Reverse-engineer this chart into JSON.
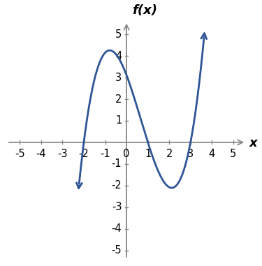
{
  "zeros": [
    -2,
    1,
    3
  ],
  "scale": 0.519,
  "xlim": [
    -5.7,
    5.7
  ],
  "ylim": [
    -5.5,
    5.7
  ],
  "x_ticks": [
    -5,
    -4,
    -3,
    -2,
    -1,
    1,
    2,
    3,
    4,
    5
  ],
  "y_ticks": [
    -5,
    -4,
    -3,
    -2,
    -1,
    1,
    2,
    3,
    4,
    5
  ],
  "line_color": "#2f5597",
  "line_width": 2.0,
  "axis_color": "#888888",
  "title": "f(x)",
  "xlabel": "x",
  "background_color": "#ffffff",
  "tick_fontsize": 10.5,
  "label_fontsize": 13,
  "title_fontsize": 13,
  "curve_x_start": -2.22,
  "curve_x_end": 3.63
}
